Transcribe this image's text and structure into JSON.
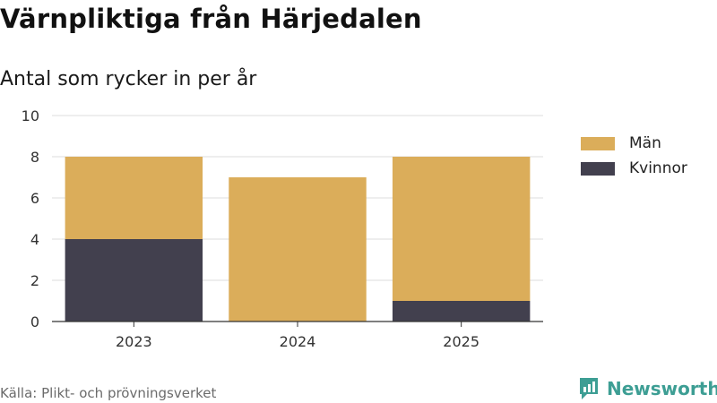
{
  "title": "Värnpliktiga från Härjedalen",
  "subtitle": "Antal som rycker in per år",
  "source": "Källa: Plikt- och prövningsverket",
  "brand": {
    "name": "Newsworthy",
    "color": "#3d9e94"
  },
  "colors": {
    "man": "#dbad5a",
    "kvinnor": "#42404e",
    "grid": "#dddddd",
    "axis": "#333333"
  },
  "chart_data": {
    "type": "bar",
    "stacked": true,
    "categories": [
      "2023",
      "2024",
      "2025"
    ],
    "series": [
      {
        "name": "Kvinnor",
        "values": [
          4,
          0,
          1
        ],
        "color": "#42404e"
      },
      {
        "name": "Män",
        "values": [
          4,
          7,
          7
        ],
        "color": "#dbad5a"
      }
    ],
    "ylim": [
      0,
      10
    ],
    "yticks": [
      "0",
      "2",
      "4",
      "6",
      "8",
      "10"
    ],
    "grid": true,
    "legend": {
      "placement": "right",
      "entries": [
        "Män",
        "Kvinnor"
      ]
    }
  }
}
